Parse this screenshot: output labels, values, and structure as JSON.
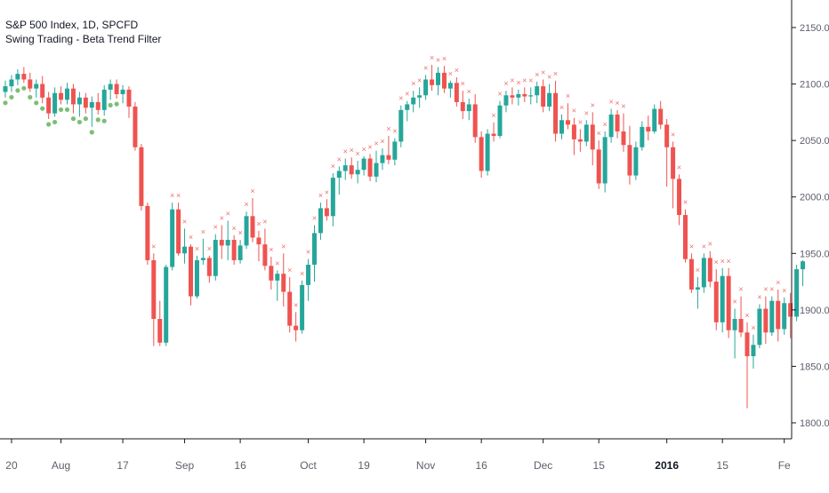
{
  "header": {
    "symbol_line": "S&P 500 Index, 1D, SPCFD",
    "indicator_line": "Swing Trading - Beta Trend Filter"
  },
  "colors": {
    "up": "#26a69a",
    "down": "#ef5350",
    "marker_x": "#f06c6c",
    "marker_dot": "#7bbf73",
    "axis": "#131722",
    "tick_text": "#5d606b",
    "background": "#ffffff"
  },
  "chart_data": {
    "type": "candlestick",
    "y_axis": {
      "min": 1780,
      "max": 2180,
      "ticks": [
        "2150.0",
        "2100.0",
        "2050.0",
        "2000.0",
        "1950.0",
        "1900.0",
        "1850.0",
        "1800.0"
      ],
      "tick_values": [
        2150,
        2100,
        2050,
        2000,
        1950,
        1900,
        1850,
        1800
      ]
    },
    "x_axis": {
      "labels": [
        {
          "text": "20",
          "i": 1,
          "bold": false
        },
        {
          "text": "Aug",
          "i": 9,
          "bold": false
        },
        {
          "text": "17",
          "i": 19,
          "bold": false
        },
        {
          "text": "Sep",
          "i": 29,
          "bold": false
        },
        {
          "text": "16",
          "i": 38,
          "bold": false
        },
        {
          "text": "Oct",
          "i": 49,
          "bold": false
        },
        {
          "text": "19",
          "i": 58,
          "bold": false
        },
        {
          "text": "Nov",
          "i": 68,
          "bold": false
        },
        {
          "text": "16",
          "i": 77,
          "bold": false
        },
        {
          "text": "Dec",
          "i": 87,
          "bold": false
        },
        {
          "text": "15",
          "i": 96,
          "bold": false
        },
        {
          "text": "2016",
          "i": 107,
          "bold": true
        },
        {
          "text": "15",
          "i": 116,
          "bold": false
        },
        {
          "text": "Fe",
          "i": 126,
          "bold": false
        }
      ]
    },
    "candles": [
      [
        2093,
        2103,
        2088,
        2098
      ],
      [
        2098,
        2108,
        2093,
        2104
      ],
      [
        2104,
        2113,
        2099,
        2109
      ],
      [
        2109,
        2115,
        2101,
        2104
      ],
      [
        2104,
        2110,
        2093,
        2096
      ],
      [
        2096,
        2104,
        2088,
        2100
      ],
      [
        2100,
        2107,
        2083,
        2088
      ],
      [
        2088,
        2093,
        2069,
        2074
      ],
      [
        2074,
        2097,
        2071,
        2092
      ],
      [
        2092,
        2098,
        2082,
        2086
      ],
      [
        2086,
        2101,
        2082,
        2096
      ],
      [
        2096,
        2100,
        2074,
        2082
      ],
      [
        2082,
        2093,
        2071,
        2088
      ],
      [
        2088,
        2092,
        2074,
        2079
      ],
      [
        2079,
        2089,
        2062,
        2084
      ],
      [
        2084,
        2092,
        2073,
        2077
      ],
      [
        2077,
        2099,
        2072,
        2095
      ],
      [
        2095,
        2104,
        2086,
        2100
      ],
      [
        2100,
        2104,
        2087,
        2091
      ],
      [
        2091,
        2099,
        2083,
        2095
      ],
      [
        2095,
        2098,
        2070,
        2080
      ],
      [
        2080,
        2084,
        2041,
        2044
      ],
      [
        2044,
        2047,
        1988,
        1992
      ],
      [
        1992,
        1995,
        1940,
        1944
      ],
      [
        1944,
        1950,
        1868,
        1892
      ],
      [
        1892,
        1908,
        1868,
        1871
      ],
      [
        1871,
        1940,
        1868,
        1938
      ],
      [
        1938,
        1995,
        1935,
        1989
      ],
      [
        1989,
        1995,
        1948,
        1950
      ],
      [
        1950,
        1972,
        1941,
        1956
      ],
      [
        1956,
        1958,
        1904,
        1912
      ],
      [
        1912,
        1948,
        1910,
        1944
      ],
      [
        1944,
        1963,
        1940,
        1946
      ],
      [
        1946,
        1948,
        1924,
        1930
      ],
      [
        1930,
        1967,
        1926,
        1962
      ],
      [
        1962,
        1975,
        1945,
        1957
      ],
      [
        1957,
        1979,
        1944,
        1962
      ],
      [
        1962,
        1966,
        1940,
        1944
      ],
      [
        1944,
        1962,
        1941,
        1957
      ],
      [
        1957,
        1987,
        1954,
        1983
      ],
      [
        1983,
        1999,
        1960,
        1964
      ],
      [
        1964,
        1970,
        1943,
        1958
      ],
      [
        1958,
        1972,
        1935,
        1939
      ],
      [
        1939,
        1947,
        1918,
        1926
      ],
      [
        1926,
        1935,
        1908,
        1932
      ],
      [
        1932,
        1950,
        1903,
        1916
      ],
      [
        1916,
        1929,
        1880,
        1886
      ],
      [
        1886,
        1898,
        1872,
        1882
      ],
      [
        1882,
        1926,
        1879,
        1922
      ],
      [
        1922,
        1945,
        1908,
        1940
      ],
      [
        1940,
        1975,
        1925,
        1968
      ],
      [
        1968,
        1995,
        1962,
        1990
      ],
      [
        1990,
        1998,
        1979,
        1983
      ],
      [
        1983,
        2021,
        1974,
        2017
      ],
      [
        2017,
        2027,
        2002,
        2023
      ],
      [
        2023,
        2034,
        2015,
        2028
      ],
      [
        2028,
        2035,
        2016,
        2020
      ],
      [
        2020,
        2032,
        2012,
        2024
      ],
      [
        2024,
        2036,
        2019,
        2034
      ],
      [
        2034,
        2038,
        2014,
        2018
      ],
      [
        2018,
        2041,
        2013,
        2030
      ],
      [
        2030,
        2043,
        2024,
        2037
      ],
      [
        2037,
        2054,
        2029,
        2033
      ],
      [
        2033,
        2052,
        2028,
        2049
      ],
      [
        2049,
        2081,
        2044,
        2077
      ],
      [
        2077,
        2085,
        2067,
        2082
      ],
      [
        2082,
        2094,
        2075,
        2088
      ],
      [
        2088,
        2097,
        2079,
        2090
      ],
      [
        2090,
        2108,
        2086,
        2104
      ],
      [
        2104,
        2117,
        2094,
        2099
      ],
      [
        2099,
        2115,
        2090,
        2110
      ],
      [
        2110,
        2116,
        2092,
        2096
      ],
      [
        2096,
        2103,
        2088,
        2101
      ],
      [
        2101,
        2106,
        2080,
        2084
      ],
      [
        2084,
        2094,
        2069,
        2076
      ],
      [
        2076,
        2087,
        2068,
        2082
      ],
      [
        2082,
        2091,
        2048,
        2053
      ],
      [
        2053,
        2058,
        2017,
        2023
      ],
      [
        2023,
        2060,
        2019,
        2056
      ],
      [
        2056,
        2066,
        2049,
        2054
      ],
      [
        2054,
        2085,
        2052,
        2081
      ],
      [
        2081,
        2094,
        2075,
        2090
      ],
      [
        2090,
        2097,
        2082,
        2088
      ],
      [
        2088,
        2095,
        2081,
        2091
      ],
      [
        2091,
        2097,
        2084,
        2089
      ],
      [
        2089,
        2097,
        2082,
        2090
      ],
      [
        2090,
        2102,
        2083,
        2098
      ],
      [
        2098,
        2104,
        2075,
        2080
      ],
      [
        2080,
        2100,
        2076,
        2092
      ],
      [
        2092,
        2103,
        2049,
        2056
      ],
      [
        2056,
        2073,
        2051,
        2068
      ],
      [
        2068,
        2083,
        2060,
        2064
      ],
      [
        2064,
        2070,
        2037,
        2051
      ],
      [
        2051,
        2060,
        2040,
        2049
      ],
      [
        2049,
        2068,
        2045,
        2064
      ],
      [
        2064,
        2075,
        2028,
        2042
      ],
      [
        2042,
        2050,
        2007,
        2012
      ],
      [
        2012,
        2058,
        2004,
        2053
      ],
      [
        2053,
        2078,
        2048,
        2073
      ],
      [
        2073,
        2077,
        2052,
        2058
      ],
      [
        2058,
        2074,
        2040,
        2046
      ],
      [
        2046,
        2063,
        2011,
        2019
      ],
      [
        2019,
        2049,
        2015,
        2044
      ],
      [
        2044,
        2067,
        2041,
        2062
      ],
      [
        2062,
        2072,
        2050,
        2058
      ],
      [
        2058,
        2082,
        2056,
        2078
      ],
      [
        2078,
        2085,
        2060,
        2064
      ],
      [
        2064,
        2069,
        2009,
        2044
      ],
      [
        2044,
        2049,
        1990,
        2016
      ],
      [
        2016,
        2020,
        1975,
        1984
      ],
      [
        1984,
        1989,
        1942,
        1945
      ],
      [
        1945,
        1950,
        1915,
        1918
      ],
      [
        1918,
        1929,
        1901,
        1920
      ],
      [
        1920,
        1950,
        1915,
        1946
      ],
      [
        1946,
        1952,
        1920,
        1925
      ],
      [
        1925,
        1936,
        1882,
        1889
      ],
      [
        1889,
        1937,
        1880,
        1930
      ],
      [
        1930,
        1937,
        1875,
        1882
      ],
      [
        1882,
        1901,
        1857,
        1892
      ],
      [
        1892,
        1912,
        1876,
        1880
      ],
      [
        1880,
        1889,
        1813,
        1859
      ],
      [
        1859,
        1878,
        1848,
        1869
      ],
      [
        1869,
        1905,
        1866,
        1901
      ],
      [
        1901,
        1912,
        1870,
        1880
      ],
      [
        1880,
        1912,
        1877,
        1908
      ],
      [
        1908,
        1918,
        1872,
        1883
      ],
      [
        1883,
        1911,
        1878,
        1906
      ],
      [
        1906,
        1915,
        1875,
        1894
      ],
      [
        1894,
        1940,
        1890,
        1936
      ],
      [
        1936,
        1944,
        1921,
        1943
      ]
    ],
    "x_markers_at": [
      51,
      52,
      53,
      54,
      55,
      56,
      57,
      58,
      59,
      60,
      61,
      62,
      63,
      64,
      65,
      66,
      67,
      68,
      69,
      70,
      71,
      72,
      73,
      74,
      75,
      79,
      80,
      81,
      82,
      83,
      84,
      85,
      86,
      87,
      88,
      89,
      90,
      91,
      92,
      93,
      94,
      95,
      96,
      97,
      98,
      99,
      100,
      24,
      27,
      28,
      29,
      30,
      31,
      32,
      33,
      34,
      35,
      36,
      37,
      38,
      39,
      40,
      41,
      42,
      43,
      44,
      45,
      46,
      47,
      48,
      49,
      50,
      108,
      109,
      110,
      111,
      112,
      113,
      114,
      115,
      116,
      117,
      118,
      119,
      120,
      121,
      122,
      123,
      124,
      125,
      126
    ],
    "dot_markers_at": [
      0,
      1,
      2,
      3,
      4,
      5,
      6,
      7,
      8,
      9,
      10,
      11,
      12,
      13,
      14,
      15,
      16,
      17,
      18
    ]
  }
}
